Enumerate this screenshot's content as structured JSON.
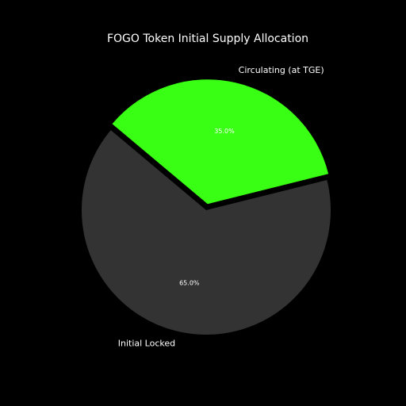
{
  "chart_data": {
    "type": "pie",
    "title": "FOGO Token Initial Supply Allocation",
    "categories": [
      "Circulating (at TGE)",
      "Initial Locked"
    ],
    "values": [
      35,
      65
    ],
    "value_labels": [
      "35.0%",
      "65.0%"
    ],
    "colors": [
      "#39ff14",
      "#333333"
    ]
  }
}
